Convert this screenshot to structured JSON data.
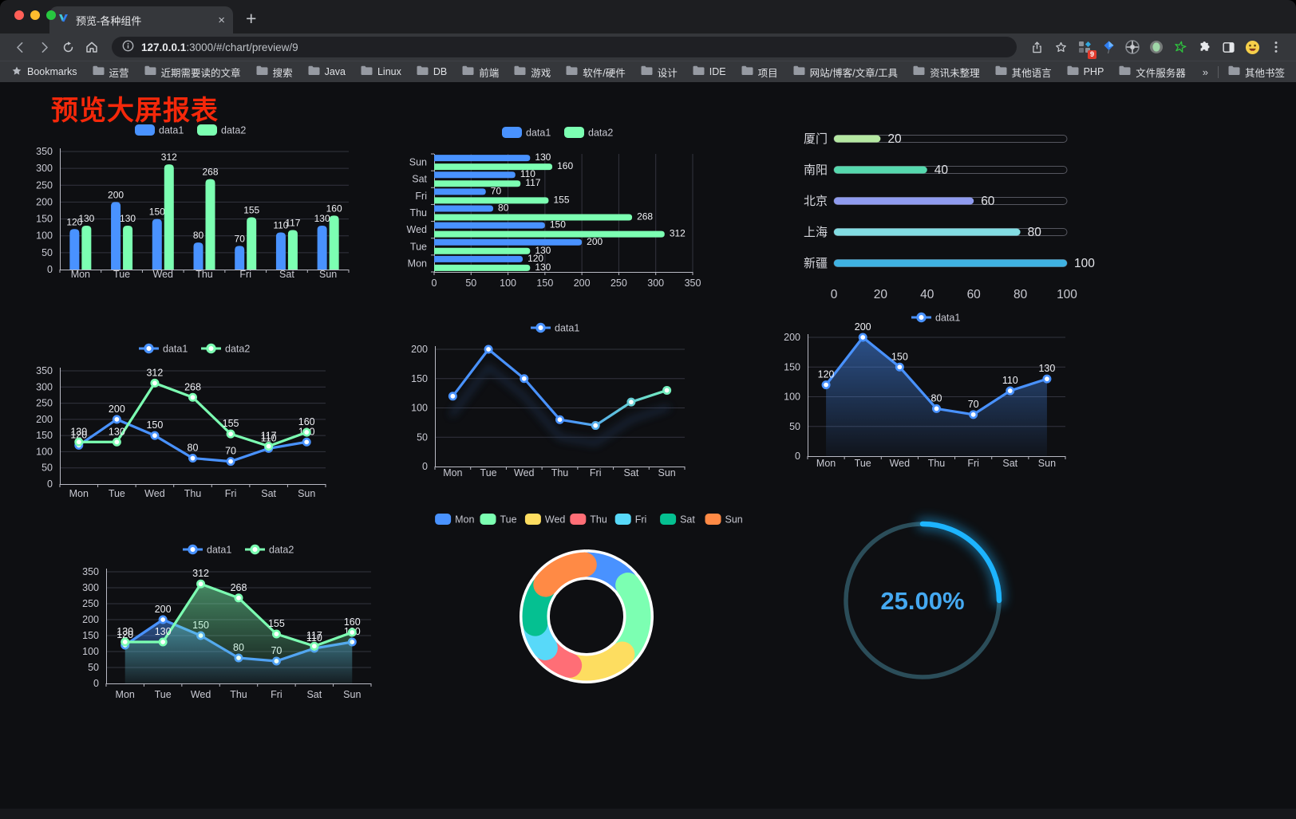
{
  "window": {
    "traffic_lights": [
      "#ff5f57",
      "#febc2e",
      "#28c840"
    ],
    "tab_title": "预览-各种组件",
    "close_tab": "×",
    "new_tab_plus": "+"
  },
  "toolbar": {
    "url_host": "127.0.0.1",
    "url_rest": ":3000/#/chart/preview/9",
    "extension_badge": "9"
  },
  "bookmarks_bar": {
    "manager_label": "Bookmarks",
    "folders": [
      "运营",
      "近期需要读的文章",
      "搜索",
      "Java",
      "Linux",
      "DB",
      "前端",
      "游戏",
      "软件/硬件",
      "设计",
      "IDE",
      "项目",
      "网站/博客/文章/工具",
      "资讯未整理",
      "其他语言",
      "PHP",
      "文件服务器"
    ],
    "overflow_chevron": "»",
    "other_bookmarks": "其他书签"
  },
  "page": {
    "title": "预览大屏报表",
    "title_color": "#f5280a",
    "background": "#0e0f12",
    "axis_text_color": "#c9cad3",
    "grid_line_color": "#33343f",
    "axis_line_color": "#b9bac4",
    "value_label_color": "#f0f1f5",
    "legend_text_color": "#c6c7d0"
  },
  "chart_data": [
    {
      "id": "bar-grouped",
      "type": "bar",
      "legend_position": "top",
      "grid": true,
      "categories": [
        "Mon",
        "Tue",
        "Wed",
        "Thu",
        "Fri",
        "Sat",
        "Sun"
      ],
      "series": [
        {
          "name": "data1",
          "color": "#4992ff",
          "values": [
            120,
            200,
            150,
            80,
            70,
            110,
            130
          ]
        },
        {
          "name": "data2",
          "color": "#7cffb2",
          "values": [
            130,
            130,
            312,
            268,
            155,
            117,
            160
          ]
        }
      ],
      "ylim": [
        0,
        350
      ],
      "ytick_step": 50
    },
    {
      "id": "bar-horizontal",
      "type": "bar",
      "orientation": "horizontal",
      "legend_position": "top",
      "categories": [
        "Mon",
        "Tue",
        "Wed",
        "Thu",
        "Fri",
        "Sat",
        "Sun"
      ],
      "series": [
        {
          "name": "data1",
          "color": "#4992ff",
          "values": [
            120,
            200,
            150,
            80,
            70,
            110,
            130
          ]
        },
        {
          "name": "data2",
          "color": "#7cffb2",
          "values": [
            130,
            130,
            312,
            268,
            155,
            117,
            160
          ]
        }
      ],
      "xlim": [
        0,
        350
      ],
      "xtick_step": 50
    },
    {
      "id": "city-progress",
      "type": "bar",
      "orientation": "progress",
      "items": [
        {
          "label": "厦门",
          "value": 20,
          "color": "#b5e8a2"
        },
        {
          "label": "南阳",
          "value": 40,
          "color": "#56d9ae"
        },
        {
          "label": "北京",
          "value": 60,
          "color": "#8f9bef"
        },
        {
          "label": "上海",
          "value": 80,
          "color": "#83dde3"
        },
        {
          "label": "新疆",
          "value": 100,
          "color": "#3fb2e2"
        }
      ],
      "xlim": [
        0,
        100
      ],
      "xticks": [
        0,
        20,
        40,
        60,
        80,
        100
      ]
    },
    {
      "id": "line-two-series",
      "type": "line",
      "legend_position": "top",
      "point_labels": true,
      "categories": [
        "Mon",
        "Tue",
        "Wed",
        "Thu",
        "Fri",
        "Sat",
        "Sun"
      ],
      "series": [
        {
          "name": "data1",
          "color": "#4992ff",
          "values": [
            120,
            200,
            150,
            80,
            70,
            110,
            130
          ]
        },
        {
          "name": "data2",
          "color": "#7cffb2",
          "values": [
            130,
            130,
            312,
            268,
            155,
            117,
            160
          ]
        }
      ],
      "ylim": [
        0,
        350
      ],
      "ytick_step": 50
    },
    {
      "id": "line-gradient",
      "type": "line",
      "legend_position": "top",
      "point_labels": false,
      "categories": [
        "Mon",
        "Tue",
        "Wed",
        "Thu",
        "Fri",
        "Sat",
        "Sun"
      ],
      "series": [
        {
          "name": "data1",
          "gradient": [
            "#4992ff",
            "#7cffb2"
          ],
          "values": [
            120,
            200,
            150,
            80,
            70,
            110,
            130
          ]
        }
      ],
      "ylim": [
        0,
        200
      ],
      "ytick_step": 50
    },
    {
      "id": "area-single",
      "type": "area",
      "legend_position": "top",
      "point_labels": true,
      "categories": [
        "Mon",
        "Tue",
        "Wed",
        "Thu",
        "Fri",
        "Sat",
        "Sun"
      ],
      "series": [
        {
          "name": "data1",
          "color": "#4992ff",
          "values": [
            120,
            200,
            150,
            80,
            70,
            110,
            130
          ]
        }
      ],
      "ylim": [
        0,
        200
      ],
      "ytick_step": 50
    },
    {
      "id": "area-two-series",
      "type": "area",
      "legend_position": "top",
      "point_labels": true,
      "categories": [
        "Mon",
        "Tue",
        "Wed",
        "Thu",
        "Fri",
        "Sat",
        "Sun"
      ],
      "series": [
        {
          "name": "data1",
          "color": "#4992ff",
          "values": [
            120,
            200,
            150,
            80,
            70,
            110,
            130
          ]
        },
        {
          "name": "data2",
          "color": "#7cffb2",
          "values": [
            130,
            130,
            312,
            268,
            155,
            117,
            160
          ]
        }
      ],
      "ylim": [
        0,
        350
      ],
      "ytick_step": 50
    },
    {
      "id": "donut",
      "type": "pie",
      "inner_radius_ratio": 0.6,
      "legend_position": "top",
      "items": [
        {
          "label": "Mon",
          "value": 120,
          "color": "#4992ff"
        },
        {
          "label": "Tue",
          "value": 200,
          "color": "#7cffb2"
        },
        {
          "label": "Wed",
          "value": 150,
          "color": "#fddd60"
        },
        {
          "label": "Thu",
          "value": 80,
          "color": "#ff6e76"
        },
        {
          "label": "Fri",
          "value": 70,
          "color": "#58d9f9"
        },
        {
          "label": "Sat",
          "value": 110,
          "color": "#05c091"
        },
        {
          "label": "Sun",
          "value": 130,
          "color": "#ff8a45"
        }
      ]
    },
    {
      "id": "gauge",
      "type": "gauge",
      "value": 25,
      "max": 100,
      "display": "25.00%",
      "progress_color": "#1db4ff",
      "track_color": "#2b4d59",
      "text_color": "#45a9f1"
    }
  ]
}
